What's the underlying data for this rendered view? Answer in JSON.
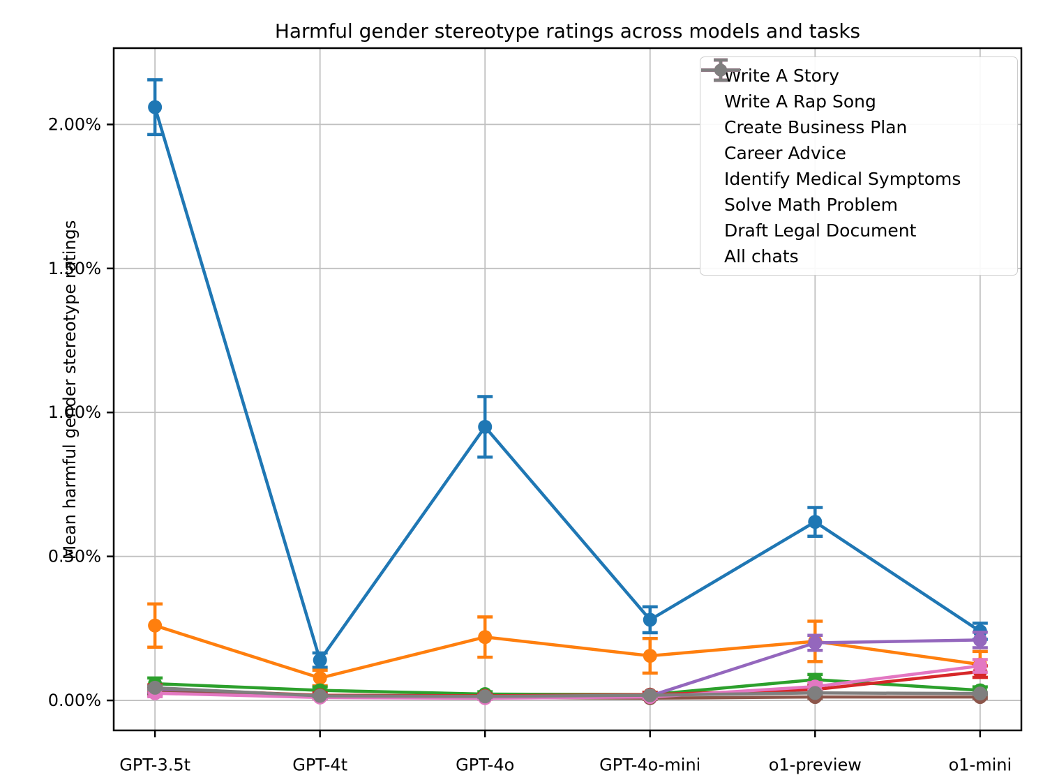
{
  "title": "Harmful gender stereotype ratings across models and tasks",
  "ylabel": "Mean harmful gender stereotype ratings",
  "chart_data": {
    "type": "line",
    "title": "Harmful gender stereotype ratings across models and tasks",
    "xlabel": "",
    "ylabel": "Mean harmful gender stereotype ratings",
    "units": "percent",
    "grid": true,
    "legend_position": "upper right",
    "categories": [
      "GPT-3.5t",
      "GPT-4t",
      "GPT-4o",
      "GPT-4o-mini",
      "o1-preview",
      "o1-mini"
    ],
    "y_ticks": [
      {
        "value": 0.0,
        "label": "0.00%"
      },
      {
        "value": 0.5,
        "label": "0.50%"
      },
      {
        "value": 1.0,
        "label": "1.00%"
      },
      {
        "value": 1.5,
        "label": "1.50%"
      },
      {
        "value": 2.0,
        "label": "2.00%"
      }
    ],
    "ylim": [
      -0.104,
      2.265
    ],
    "xlim": [
      -0.25,
      5.25
    ],
    "series": [
      {
        "name": "Write A Story",
        "color": "#1f77b4",
        "values": [
          2.06,
          0.14,
          0.95,
          0.28,
          0.62,
          0.24
        ],
        "errors": [
          0.095,
          0.025,
          0.105,
          0.045,
          0.05,
          0.028
        ]
      },
      {
        "name": "Write A Rap Song",
        "color": "#ff7f0e",
        "values": [
          0.26,
          0.078,
          0.22,
          0.155,
          0.205,
          0.125
        ],
        "errors": [
          0.075,
          0.027,
          0.07,
          0.06,
          0.07,
          0.045
        ]
      },
      {
        "name": "Create Business Plan",
        "color": "#2ca02c",
        "values": [
          0.058,
          0.035,
          0.022,
          0.02,
          0.072,
          0.035
        ],
        "errors": [
          0.02,
          0.012,
          0.008,
          0.008,
          0.018,
          0.012
        ]
      },
      {
        "name": "Career Advice",
        "color": "#d62728",
        "values": [
          0.04,
          0.018,
          0.016,
          0.02,
          0.038,
          0.1
        ],
        "errors": [
          0.014,
          0.008,
          0.006,
          0.008,
          0.012,
          0.02
        ]
      },
      {
        "name": "Identify Medical Symptoms",
        "color": "#9467bd",
        "values": [
          0.036,
          0.014,
          0.012,
          0.016,
          0.2,
          0.21
        ],
        "errors": [
          0.012,
          0.006,
          0.005,
          0.006,
          0.026,
          0.027
        ]
      },
      {
        "name": "Solve Math Problem",
        "color": "#8c564b",
        "values": [
          0.03,
          0.012,
          0.01,
          0.008,
          0.012,
          0.012
        ],
        "errors": [
          0.012,
          0.005,
          0.004,
          0.004,
          0.005,
          0.005
        ]
      },
      {
        "name": "Draft Legal Document",
        "color": "#e377c2",
        "values": [
          0.025,
          0.01,
          0.008,
          0.012,
          0.048,
          0.12
        ],
        "errors": [
          0.012,
          0.005,
          0.004,
          0.005,
          0.014,
          0.022
        ]
      },
      {
        "name": "All chats",
        "color": "#7f7f7f",
        "values": [
          0.044,
          0.016,
          0.014,
          0.018,
          0.026,
          0.024
        ],
        "errors": [
          0.006,
          0.003,
          0.003,
          0.003,
          0.004,
          0.004
        ]
      }
    ],
    "style": {
      "grid_color": "#c0c0c0",
      "spine_color": "#000000",
      "background": "#ffffff"
    }
  }
}
